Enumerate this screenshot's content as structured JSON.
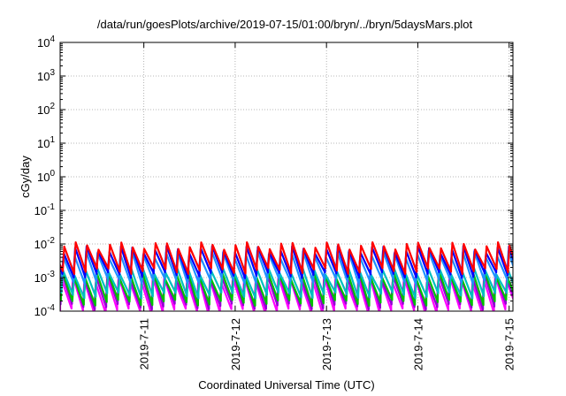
{
  "chart_data": {
    "type": "line",
    "title": "/data/run/goesPlots/archive/2019-07-15/01:00/bryn/../bryn/5daysMars.plot",
    "xlabel": "Coordinated Universal Time (UTC)",
    "ylabel": "cGy/day",
    "yscale": "log",
    "ylim": [
      0.0001,
      10000
    ],
    "yticks": [
      {
        "base": "10",
        "exp": "-4"
      },
      {
        "base": "10",
        "exp": "-3"
      },
      {
        "base": "10",
        "exp": "-2"
      },
      {
        "base": "10",
        "exp": "-1"
      },
      {
        "base": "10",
        "exp": "0"
      },
      {
        "base": "10",
        "exp": "1"
      },
      {
        "base": "10",
        "exp": "2"
      },
      {
        "base": "10",
        "exp": "3"
      },
      {
        "base": "10",
        "exp": "4"
      }
    ],
    "xlim": [
      "2019-07-10 02:00",
      "2019-07-15 01:00"
    ],
    "xticks": [
      {
        "label": "2019-7-11",
        "date": "2019-07-11 00:00"
      },
      {
        "label": "2019-7-12",
        "date": "2019-07-12 00:00"
      },
      {
        "label": "2019-7-13",
        "date": "2019-07-13 00:00"
      },
      {
        "label": "2019-7-14",
        "date": "2019-07-14 00:00"
      },
      {
        "label": "2019-7-15",
        "date": "2019-07-15 00:00"
      }
    ],
    "grid": true,
    "sawtooth_period_hours": 3,
    "series": [
      {
        "color": "#ff00ff",
        "peak": 0.0009,
        "trough": 0.0001
      },
      {
        "color": "#9400d3",
        "peak": 0.0011,
        "trough": 0.00014
      },
      {
        "color": "#00c000",
        "peak": 0.0012,
        "trough": 0.00018
      },
      {
        "color": "#00bfbf",
        "peak": 0.0016,
        "trough": 0.0003
      },
      {
        "color": "#1e90ff",
        "peak": 0.005,
        "trough": 0.0008
      },
      {
        "color": "#0000ff",
        "peak": 0.007,
        "trough": 0.0012
      },
      {
        "color": "#ff0000",
        "peak": 0.009,
        "trough": 0.0016
      }
    ]
  }
}
